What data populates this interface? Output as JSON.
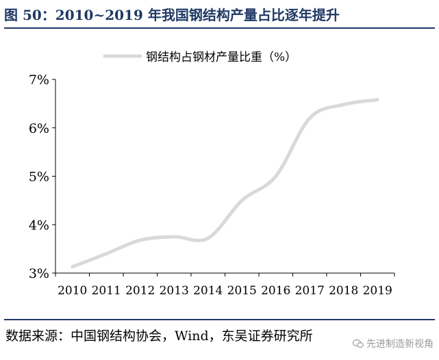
{
  "figure": {
    "title": "图 50：2010~2019 年我国钢结构产量占比逐年提升",
    "source": "数据来源：中国钢结构协会，Wind，东吴证券研究所",
    "watermark": "先进制造新视角",
    "watermark_icon": "wechat-icon"
  },
  "colors": {
    "title": "#1f3864",
    "line": "#d9d9d9",
    "axis": "#000000"
  },
  "chart_data": {
    "type": "line",
    "legend": {
      "label": "钢结构占钢材产量比重（%）",
      "position": "top-center"
    },
    "xlabel": "",
    "ylabel": "",
    "grid": false,
    "x": [
      "2010",
      "2011",
      "2012",
      "2013",
      "2014",
      "2015",
      "2016",
      "2017",
      "2018",
      "2019"
    ],
    "ylim": [
      3,
      7
    ],
    "yticks": [
      3,
      4,
      5,
      6,
      7
    ],
    "ytick_labels": [
      "3%",
      "4%",
      "5%",
      "6%",
      "7%"
    ],
    "series": [
      {
        "name": "钢结构占钢材产量比重（%）",
        "values": [
          3.13,
          3.4,
          3.68,
          3.75,
          3.72,
          4.5,
          5.0,
          6.2,
          6.48,
          6.58
        ]
      }
    ]
  }
}
